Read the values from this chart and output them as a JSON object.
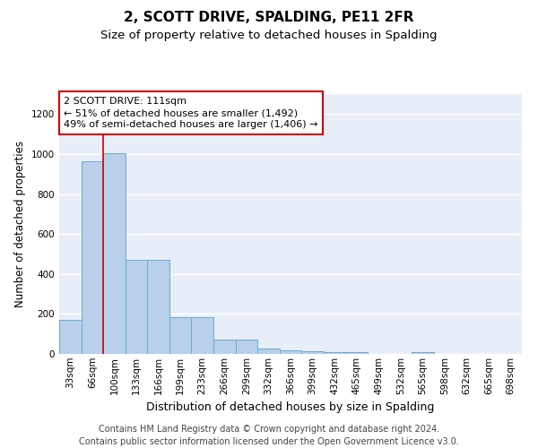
{
  "title": "2, SCOTT DRIVE, SPALDING, PE11 2FR",
  "subtitle": "Size of property relative to detached houses in Spalding",
  "xlabel": "Distribution of detached houses by size in Spalding",
  "ylabel": "Number of detached properties",
  "categories": [
    "33sqm",
    "66sqm",
    "100sqm",
    "133sqm",
    "166sqm",
    "199sqm",
    "233sqm",
    "266sqm",
    "299sqm",
    "332sqm",
    "366sqm",
    "399sqm",
    "432sqm",
    "465sqm",
    "499sqm",
    "532sqm",
    "565sqm",
    "598sqm",
    "632sqm",
    "665sqm",
    "698sqm"
  ],
  "values": [
    170,
    965,
    1005,
    470,
    470,
    185,
    185,
    70,
    70,
    25,
    20,
    15,
    10,
    10,
    0,
    0,
    10,
    0,
    0,
    0,
    0
  ],
  "bar_color": "#b8d0ea",
  "bar_edge_color": "#6aaad4",
  "highlight_line_color": "#cc0000",
  "annotation_text": "2 SCOTT DRIVE: 111sqm\n← 51% of detached houses are smaller (1,492)\n49% of semi-detached houses are larger (1,406) →",
  "annotation_box_color": "#ffffff",
  "annotation_box_edge_color": "#cc0000",
  "ylim": [
    0,
    1300
  ],
  "yticks": [
    0,
    200,
    400,
    600,
    800,
    1000,
    1200
  ],
  "background_color": "#e8eef8",
  "grid_color": "#ffffff",
  "footer_text": "Contains HM Land Registry data © Crown copyright and database right 2024.\nContains public sector information licensed under the Open Government Licence v3.0.",
  "title_fontsize": 11,
  "subtitle_fontsize": 9.5,
  "ylabel_fontsize": 8.5,
  "xlabel_fontsize": 9,
  "annotation_fontsize": 8,
  "tick_fontsize": 7.5,
  "footer_fontsize": 7,
  "red_line_x": 1.5
}
